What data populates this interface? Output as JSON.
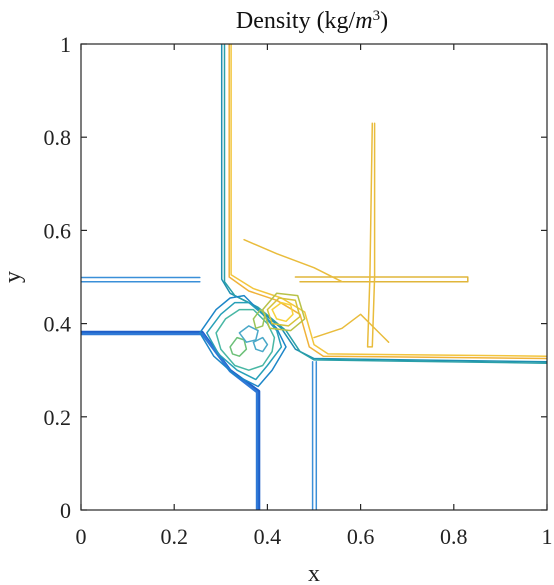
{
  "chart_data": {
    "type": "contour",
    "title": "Density (kg/m³)",
    "title_parts": {
      "main": "Density (kg/",
      "var": "m",
      "exp": "3",
      "close": ")"
    },
    "xlabel": "x",
    "ylabel": "y",
    "xlim": [
      0,
      1
    ],
    "ylim": [
      0,
      1
    ],
    "xticks": [
      0,
      0.2,
      0.4,
      0.6,
      0.8,
      1
    ],
    "yticks": [
      0,
      0.2,
      0.4,
      0.6,
      0.8,
      1
    ],
    "xtick_labels": [
      "0",
      "0.2",
      "0.4",
      "0.6",
      "0.8",
      "1"
    ],
    "ytick_labels": [
      "0",
      "0.2",
      "0.4",
      "0.6",
      "0.8",
      "1"
    ],
    "grid": false,
    "colormap": [
      "#1f5fc8",
      "#2a8fd0",
      "#35b2b0",
      "#7cc36a",
      "#c8c23a",
      "#f0b23a",
      "#f7d23c"
    ],
    "contours": [
      {
        "level": "low",
        "color": "#1f5fc8",
        "points": [
          [
            0,
            0.382
          ],
          [
            0.26,
            0.382
          ],
          [
            0.32,
            0.3
          ],
          [
            0.382,
            0.255
          ],
          [
            0.382,
            0
          ]
        ]
      },
      {
        "level": "low",
        "color": "#2f79d6",
        "points": [
          [
            0,
            0.378
          ],
          [
            0.26,
            0.378
          ],
          [
            0.32,
            0.298
          ],
          [
            0.378,
            0.253
          ],
          [
            0.378,
            0
          ]
        ]
      },
      {
        "level": "low2",
        "color": "#3a8fd8",
        "points": [
          [
            0,
            0.499
          ],
          [
            0.255,
            0.499
          ]
        ]
      },
      {
        "level": "low2",
        "color": "#3a8fd8",
        "points": [
          [
            0,
            0.49
          ],
          [
            0.255,
            0.49
          ]
        ]
      },
      {
        "level": "low2",
        "color": "#3a8fd8",
        "points": [
          [
            0.497,
            0
          ],
          [
            0.497,
            0.318
          ]
        ]
      },
      {
        "level": "low2",
        "color": "#3a8fd8",
        "points": [
          [
            0.505,
            0
          ],
          [
            0.505,
            0.318
          ]
        ]
      },
      {
        "level": "mid",
        "color": "#1e8fb0",
        "points": [
          [
            0.302,
            1
          ],
          [
            0.302,
            0.495
          ],
          [
            0.32,
            0.465
          ],
          [
            0.37,
            0.44
          ],
          [
            0.43,
            0.39
          ],
          [
            0.46,
            0.345
          ],
          [
            0.5,
            0.325
          ],
          [
            1,
            0.318
          ]
        ]
      },
      {
        "level": "mid",
        "color": "#2aa0a8",
        "points": [
          [
            0.308,
            1
          ],
          [
            0.308,
            0.49
          ],
          [
            0.33,
            0.46
          ],
          [
            0.38,
            0.435
          ],
          [
            0.44,
            0.385
          ],
          [
            0.47,
            0.34
          ],
          [
            0.5,
            0.322
          ],
          [
            1,
            0.315
          ]
        ]
      },
      {
        "level": "high",
        "color": "#f0b23a",
        "points": [
          [
            0.318,
            1
          ],
          [
            0.318,
            0.5
          ],
          [
            0.36,
            0.47
          ],
          [
            0.42,
            0.45
          ],
          [
            0.47,
            0.42
          ],
          [
            0.49,
            0.35
          ],
          [
            0.52,
            0.33
          ],
          [
            1,
            0.325
          ]
        ]
      },
      {
        "level": "high",
        "color": "#f2c53d",
        "points": [
          [
            0.322,
            1
          ],
          [
            0.322,
            0.505
          ],
          [
            0.37,
            0.475
          ],
          [
            0.43,
            0.455
          ],
          [
            0.48,
            0.425
          ],
          [
            0.5,
            0.355
          ],
          [
            0.53,
            0.335
          ],
          [
            1,
            0.33
          ]
        ]
      },
      {
        "level": "high",
        "color": "#e0b63a",
        "points": [
          [
            0.46,
            0.5
          ],
          [
            0.63,
            0.5
          ],
          [
            0.83,
            0.5
          ],
          [
            0.83,
            0.49
          ],
          [
            0.63,
            0.49
          ],
          [
            0.47,
            0.49
          ]
        ]
      },
      {
        "level": "high",
        "color": "#e9bc3c",
        "points": [
          [
            0.63,
            0.83
          ],
          [
            0.63,
            0.5
          ],
          [
            0.625,
            0.35
          ],
          [
            0.615,
            0.35
          ],
          [
            0.62,
            0.5
          ],
          [
            0.625,
            0.83
          ]
        ]
      },
      {
        "level": "high",
        "color": "#e9bc3c",
        "points": [
          [
            0.35,
            0.58
          ],
          [
            0.42,
            0.55
          ],
          [
            0.5,
            0.52
          ],
          [
            0.56,
            0.49
          ]
        ]
      },
      {
        "level": "high",
        "color": "#e9bc3c",
        "points": [
          [
            0.5,
            0.37
          ],
          [
            0.56,
            0.39
          ],
          [
            0.6,
            0.42
          ],
          [
            0.66,
            0.36
          ]
        ]
      },
      {
        "level": "octagon",
        "color": "#1d86c8",
        "points": [
          [
            0.255,
            0.38
          ],
          [
            0.29,
            0.43
          ],
          [
            0.32,
            0.455
          ],
          [
            0.35,
            0.46
          ],
          [
            0.38,
            0.43
          ],
          [
            0.42,
            0.39
          ],
          [
            0.44,
            0.35
          ],
          [
            0.41,
            0.3
          ],
          [
            0.38,
            0.265
          ],
          [
            0.33,
            0.29
          ],
          [
            0.285,
            0.33
          ],
          [
            0.255,
            0.38
          ]
        ]
      },
      {
        "level": "octagon",
        "color": "#27a0b8",
        "points": [
          [
            0.27,
            0.38
          ],
          [
            0.3,
            0.42
          ],
          [
            0.33,
            0.445
          ],
          [
            0.36,
            0.445
          ],
          [
            0.39,
            0.42
          ],
          [
            0.42,
            0.385
          ],
          [
            0.43,
            0.35
          ],
          [
            0.4,
            0.31
          ],
          [
            0.375,
            0.28
          ],
          [
            0.335,
            0.3
          ],
          [
            0.295,
            0.335
          ],
          [
            0.27,
            0.38
          ]
        ]
      },
      {
        "level": "octagon",
        "color": "#48b7a4",
        "points": [
          [
            0.29,
            0.38
          ],
          [
            0.31,
            0.41
          ],
          [
            0.34,
            0.43
          ],
          [
            0.37,
            0.43
          ],
          [
            0.4,
            0.4
          ],
          [
            0.415,
            0.37
          ],
          [
            0.41,
            0.34
          ],
          [
            0.39,
            0.31
          ],
          [
            0.36,
            0.3
          ],
          [
            0.33,
            0.31
          ],
          [
            0.3,
            0.345
          ],
          [
            0.29,
            0.38
          ]
        ]
      },
      {
        "level": "vortex",
        "color": "#6cc078",
        "points": [
          [
            0.32,
            0.35
          ],
          [
            0.335,
            0.37
          ],
          [
            0.35,
            0.365
          ],
          [
            0.355,
            0.345
          ],
          [
            0.34,
            0.33
          ],
          [
            0.325,
            0.335
          ],
          [
            0.32,
            0.35
          ]
        ]
      },
      {
        "level": "vortex",
        "color": "#4aa8c8",
        "points": [
          [
            0.34,
            0.38
          ],
          [
            0.36,
            0.395
          ],
          [
            0.38,
            0.385
          ],
          [
            0.375,
            0.365
          ],
          [
            0.355,
            0.36
          ],
          [
            0.34,
            0.38
          ]
        ]
      },
      {
        "level": "vortex",
        "color": "#4aa8c8",
        "points": [
          [
            0.37,
            0.36
          ],
          [
            0.39,
            0.37
          ],
          [
            0.4,
            0.355
          ],
          [
            0.39,
            0.34
          ],
          [
            0.375,
            0.345
          ],
          [
            0.37,
            0.36
          ]
        ]
      },
      {
        "level": "vortex",
        "color": "#9ac458",
        "points": [
          [
            0.37,
            0.41
          ],
          [
            0.385,
            0.43
          ],
          [
            0.395,
            0.42
          ],
          [
            0.39,
            0.395
          ],
          [
            0.375,
            0.39
          ],
          [
            0.37,
            0.41
          ]
        ]
      },
      {
        "level": "vortex",
        "color": "#f7d23c",
        "points": [
          [
            0.41,
            0.43
          ],
          [
            0.43,
            0.445
          ],
          [
            0.45,
            0.44
          ],
          [
            0.455,
            0.42
          ],
          [
            0.44,
            0.405
          ],
          [
            0.42,
            0.41
          ],
          [
            0.41,
            0.43
          ]
        ]
      },
      {
        "level": "vortex",
        "color": "#d6c23a",
        "points": [
          [
            0.4,
            0.43
          ],
          [
            0.425,
            0.455
          ],
          [
            0.46,
            0.45
          ],
          [
            0.47,
            0.415
          ],
          [
            0.445,
            0.395
          ],
          [
            0.41,
            0.4
          ],
          [
            0.4,
            0.43
          ]
        ]
      },
      {
        "level": "vortex",
        "color": "#b8c248",
        "points": [
          [
            0.39,
            0.43
          ],
          [
            0.42,
            0.465
          ],
          [
            0.465,
            0.46
          ],
          [
            0.48,
            0.41
          ],
          [
            0.45,
            0.385
          ],
          [
            0.405,
            0.39
          ],
          [
            0.39,
            0.43
          ]
        ]
      }
    ]
  }
}
